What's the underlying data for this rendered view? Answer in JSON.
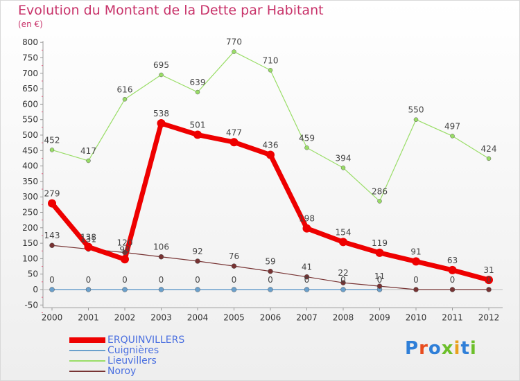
{
  "title": "Evolution du Montant de la Dette par Habitant",
  "subtitle": "(en €)",
  "logo": "Proxiti",
  "chart_data": {
    "type": "line",
    "categories": [
      "2000",
      "2001",
      "2002",
      "2003",
      "2004",
      "2005",
      "2006",
      "2007",
      "2008",
      "2009",
      "2010",
      "2011",
      "2012"
    ],
    "ylim": [
      -50,
      800
    ],
    "yticks": [
      -50,
      0,
      50,
      100,
      150,
      200,
      250,
      300,
      350,
      400,
      450,
      500,
      550,
      600,
      650,
      700,
      750,
      800
    ],
    "grid": false,
    "legend_position": "bottom-left",
    "series": [
      {
        "name": "ERQUINVILLERS",
        "color": "#ee0000",
        "values": [
          279,
          138,
          98,
          538,
          501,
          477,
          436,
          198,
          154,
          119,
          91,
          63,
          31
        ],
        "labels": [
          "279",
          "138",
          "98",
          "538",
          "501",
          "477",
          "436",
          "198",
          "154",
          "119",
          "91",
          "63",
          "31"
        ]
      },
      {
        "name": "Cuignières",
        "color": "#6aa0cc",
        "values": [
          0,
          0,
          0,
          0,
          0,
          0,
          0,
          0,
          0,
          0,
          null,
          null,
          null
        ],
        "labels": [
          "0",
          "0",
          "0",
          "0",
          "0",
          "0",
          "0",
          "0",
          "0",
          "0",
          "",
          "",
          ""
        ]
      },
      {
        "name": "Lieuvillers",
        "color": "#99dd66",
        "values": [
          452,
          417,
          616,
          695,
          639,
          770,
          710,
          459,
          394,
          286,
          550,
          497,
          424
        ],
        "labels": [
          "452",
          "417",
          "616",
          "695",
          "639",
          "770",
          "710",
          "459",
          "394",
          "286",
          "550",
          "497",
          "424"
        ]
      },
      {
        "name": "Noroy",
        "color": "#773333",
        "values": [
          143,
          131,
          120,
          106,
          92,
          76,
          59,
          41,
          22,
          11,
          0,
          0,
          0
        ],
        "labels": [
          "143",
          "131",
          "120",
          "106",
          "92",
          "76",
          "59",
          "41",
          "22",
          "11",
          "0",
          "0",
          "0"
        ]
      }
    ]
  }
}
